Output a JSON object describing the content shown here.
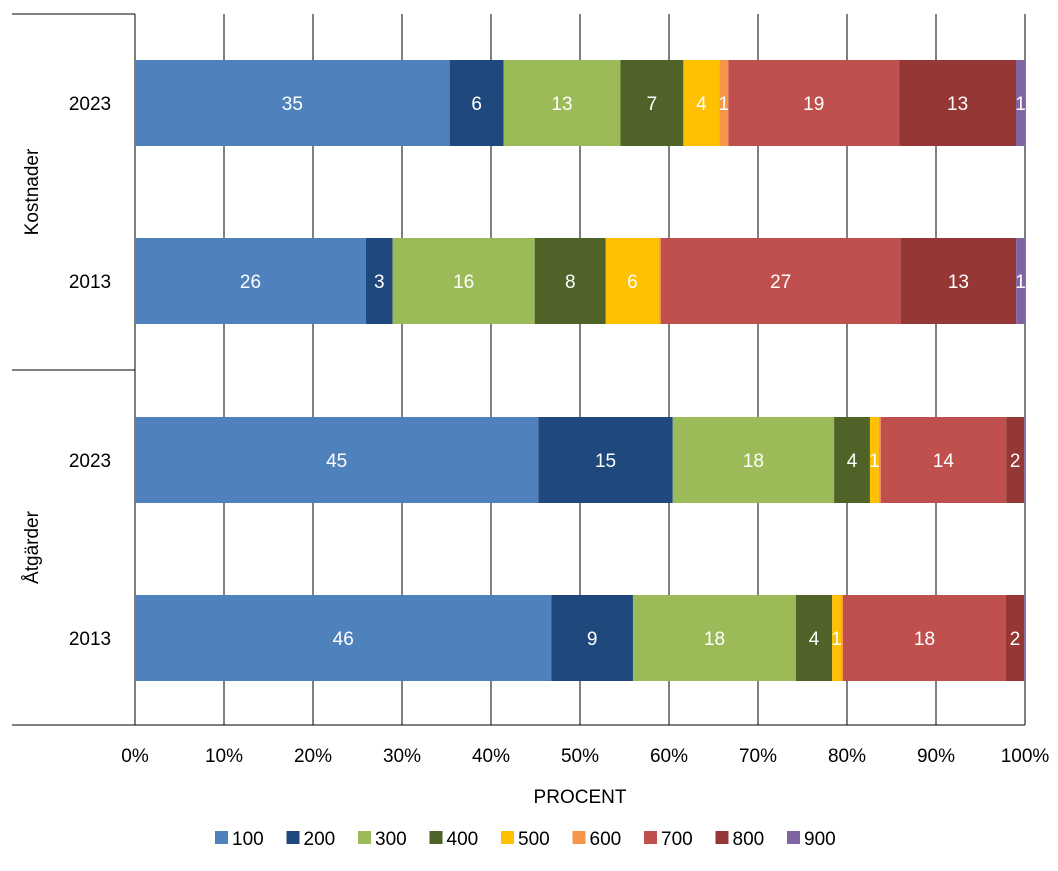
{
  "chart_data": {
    "type": "bar",
    "orientation": "horizontal",
    "stacked": "percent",
    "xlabel": "PROCENT",
    "xlim": [
      0,
      100
    ],
    "x_ticks": [
      "0%",
      "10%",
      "20%",
      "30%",
      "40%",
      "50%",
      "60%",
      "70%",
      "80%",
      "90%",
      "100%"
    ],
    "grid": true,
    "legend_position": "bottom",
    "groups": [
      {
        "label": "Kostnader",
        "rows": [
          {
            "label": "2023",
            "values": [
              35,
              6,
              13,
              7,
              4,
              1,
              19,
              13,
              1
            ],
            "labels": [
              "35",
              "6",
              "13",
              "7",
              "4",
              "1",
              "19",
              "13",
              "1"
            ]
          },
          {
            "label": "2013",
            "values": [
              26,
              3,
              16,
              8,
              6,
              0.2,
              27,
              13,
              1
            ],
            "labels": [
              "26",
              "3",
              "16",
              "8",
              "6",
              "",
              "27",
              "13",
              "1"
            ]
          }
        ]
      },
      {
        "label": "Åtgärder",
        "rows": [
          {
            "label": "2023",
            "values": [
              45,
              15,
              18,
              4,
              1,
              0.2,
              14,
              2,
              0.1
            ],
            "labels": [
              "45",
              "15",
              "18",
              "4",
              "1",
              "",
              "14",
              "2",
              ""
            ]
          },
          {
            "label": "2013",
            "values": [
              46,
              9,
              18,
              4,
              1,
              0.2,
              18,
              2,
              0.1
            ],
            "labels": [
              "46",
              "9",
              "18",
              "4",
              "1",
              "",
              "18",
              "2",
              ""
            ]
          }
        ]
      }
    ],
    "series": [
      {
        "name": "100",
        "color": "#4f81bd",
        "label_color": "#ffffff"
      },
      {
        "name": "200",
        "color": "#1f497d",
        "label_color": "#ffffff"
      },
      {
        "name": "300",
        "color": "#9bbb59",
        "label_color": "#ffffff"
      },
      {
        "name": "400",
        "color": "#4f6228",
        "label_color": "#ffffff"
      },
      {
        "name": "500",
        "color": "#ffc000",
        "label_color": "#ffffff"
      },
      {
        "name": "600",
        "color": "#f79646",
        "label_color": "#ffffff"
      },
      {
        "name": "700",
        "color": "#c0504d",
        "label_color": "#ffffff"
      },
      {
        "name": "800",
        "color": "#953735",
        "label_color": "#ffffff"
      },
      {
        "name": "900",
        "color": "#8064a2",
        "label_color": "#ffffff"
      }
    ]
  }
}
